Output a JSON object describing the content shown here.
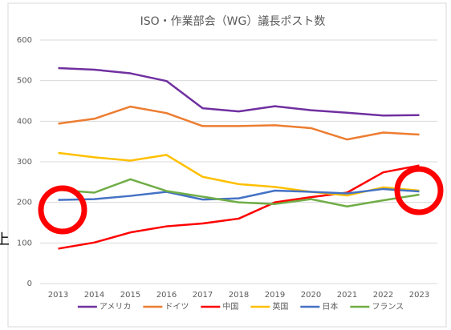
{
  "cropped_text": "上",
  "chart_data": {
    "type": "line",
    "title": "ISO・作業部会（WG）議長ポスト数",
    "categories": [
      "2013",
      "2014",
      "2015",
      "2016",
      "2017",
      "2018",
      "2019",
      "2020",
      "2021",
      "2022",
      "2023"
    ],
    "series": [
      {
        "name": "アメリカ",
        "color": "#7030a0",
        "values": [
          531,
          527,
          518,
          499,
          432,
          424,
          437,
          427,
          421,
          414,
          415
        ]
      },
      {
        "name": "ドイツ",
        "color": "#ed7d31",
        "values": [
          394,
          406,
          436,
          420,
          388,
          388,
          390,
          383,
          355,
          372,
          367
        ]
      },
      {
        "name": "中国",
        "color": "#ff0000",
        "values": [
          86,
          101,
          126,
          141,
          148,
          160,
          200,
          213,
          224,
          274,
          291
        ]
      },
      {
        "name": "英国",
        "color": "#ffc000",
        "values": [
          322,
          311,
          303,
          317,
          263,
          245,
          238,
          226,
          217,
          237,
          229
        ]
      },
      {
        "name": "日本",
        "color": "#4472c4",
        "values": [
          206,
          208,
          216,
          226,
          207,
          210,
          229,
          226,
          222,
          233,
          227
        ]
      },
      {
        "name": "フランス",
        "color": "#70ad47",
        "values": [
          231,
          224,
          257,
          228,
          214,
          200,
          196,
          208,
          190,
          205,
          219
        ]
      }
    ],
    "ylim": [
      0,
      600
    ],
    "yticks": [
      0,
      100,
      200,
      300,
      400,
      500,
      600
    ],
    "grid": true,
    "legend": "bottom"
  }
}
